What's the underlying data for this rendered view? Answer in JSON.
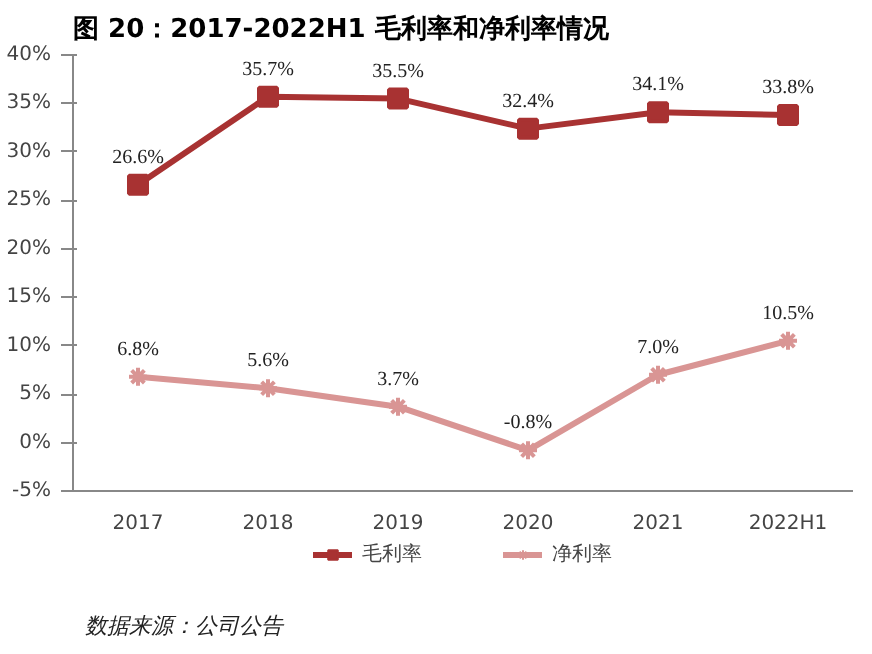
{
  "chart_data": {
    "type": "line",
    "title": "图 20：2017-2022H1 毛利率和净利率情况",
    "categories": [
      "2017",
      "2018",
      "2019",
      "2020",
      "2021",
      "2022H1"
    ],
    "series": [
      {
        "name": "毛利率",
        "color": "#a83232",
        "marker": "square",
        "values": [
          26.6,
          35.7,
          35.5,
          32.4,
          34.1,
          33.8
        ],
        "value_labels": [
          "26.6%",
          "35.7%",
          "35.5%",
          "32.4%",
          "34.1%",
          "33.8%"
        ]
      },
      {
        "name": "净利率",
        "color": "#d99594",
        "marker": "cross",
        "values": [
          6.8,
          5.6,
          3.7,
          -0.8,
          7.0,
          10.5
        ],
        "value_labels": [
          "6.8%",
          "5.6%",
          "3.7%",
          "-0.8%",
          "7.0%",
          "10.5%"
        ]
      }
    ],
    "ylim": [
      -5,
      40
    ],
    "yticks": [
      {
        "value": -5,
        "label": "-5%"
      },
      {
        "value": 0,
        "label": "0%"
      },
      {
        "value": 5,
        "label": "5%"
      },
      {
        "value": 10,
        "label": "10%"
      },
      {
        "value": 15,
        "label": "15%"
      },
      {
        "value": 20,
        "label": "20%"
      },
      {
        "value": 25,
        "label": "25%"
      },
      {
        "value": 30,
        "label": "30%"
      },
      {
        "value": 35,
        "label": "35%"
      },
      {
        "value": 40,
        "label": "40%"
      }
    ],
    "grid": false,
    "legend": "bottom",
    "line_style": "solid",
    "annotations": [
      "数据来源：公司公告"
    ]
  }
}
